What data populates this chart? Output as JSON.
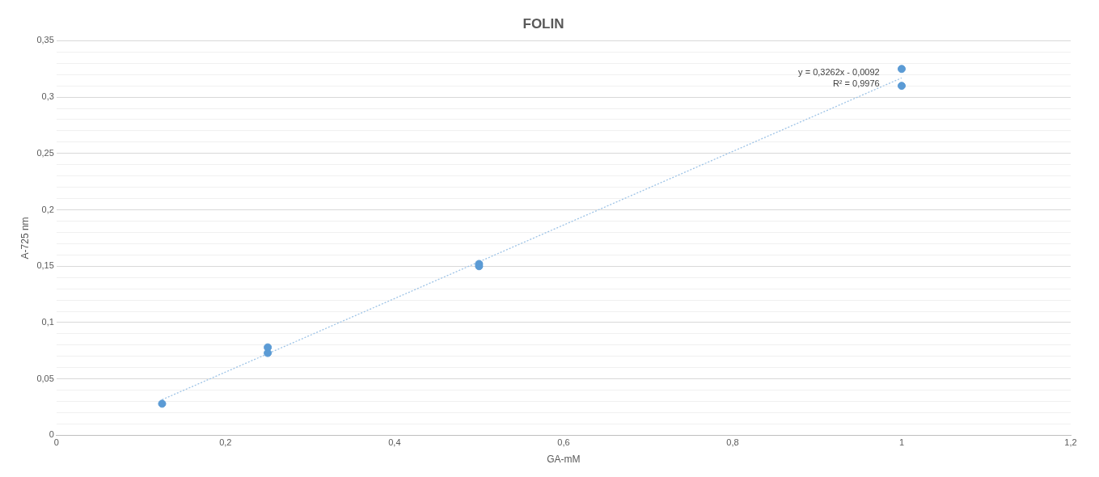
{
  "chart_data": {
    "type": "scatter",
    "title": "FOLIN",
    "xlabel": "GA-mM",
    "ylabel": "A-725 nm",
    "series": [
      {
        "type": "scatter",
        "color": "#5b9bd5",
        "x": [
          0.125,
          0.25,
          0.25,
          0.5,
          0.5,
          1,
          1
        ],
        "values": [
          0.028,
          0.078,
          0.073,
          0.152,
          0.15,
          0.325,
          0.31
        ]
      },
      {
        "type": "line",
        "color": "#9dc3e6",
        "line_style": "dotted",
        "marker": "none",
        "x": [
          0.125,
          1
        ],
        "values": [
          0.0316,
          0.317
        ]
      }
    ],
    "marker": "circle",
    "annotations": [
      "y = 0,3262x - 0,0092",
      "R² = 0,9976"
    ],
    "xlim": [
      0,
      1.2
    ],
    "xticks": [
      0,
      {
        "value": 0.2,
        "label": "0,2"
      },
      {
        "value": 0.4,
        "label": "0,4"
      },
      {
        "value": 0.6,
        "label": "0,6"
      },
      {
        "value": 0.8,
        "label": "0,8"
      },
      1,
      {
        "value": 1.2,
        "label": "1,2"
      }
    ],
    "ylim": [
      0,
      0.35
    ],
    "yticks": [
      0,
      {
        "value": 0.01,
        "label": null
      },
      {
        "value": 0.02,
        "label": null
      },
      {
        "value": 0.03,
        "label": null
      },
      {
        "value": 0.04,
        "label": null
      },
      {
        "value": 0.05,
        "label": "0,05"
      },
      {
        "value": 0.06,
        "label": null
      },
      {
        "value": 0.07,
        "label": null
      },
      {
        "value": 0.08,
        "label": null
      },
      {
        "value": 0.09,
        "label": null
      },
      {
        "value": 0.1,
        "label": "0,1"
      },
      {
        "value": 0.11,
        "label": null
      },
      {
        "value": 0.12,
        "label": null
      },
      {
        "value": 0.13,
        "label": null
      },
      {
        "value": 0.14,
        "label": null
      },
      {
        "value": 0.15,
        "label": "0,15"
      },
      {
        "value": 0.16,
        "label": null
      },
      {
        "value": 0.17,
        "label": null
      },
      {
        "value": 0.18,
        "label": null
      },
      {
        "value": 0.19,
        "label": null
      },
      {
        "value": 0.2,
        "label": "0,2"
      },
      {
        "value": 0.21,
        "label": null
      },
      {
        "value": 0.22,
        "label": null
      },
      {
        "value": 0.23,
        "label": null
      },
      {
        "value": 0.24,
        "label": null
      },
      {
        "value": 0.25,
        "label": "0,25"
      },
      {
        "value": 0.26,
        "label": null
      },
      {
        "value": 0.27,
        "label": null
      },
      {
        "value": 0.28,
        "label": null
      },
      {
        "value": 0.29,
        "label": null
      },
      {
        "value": 0.3,
        "label": "0,3"
      },
      {
        "value": 0.31,
        "label": null
      },
      {
        "value": 0.32,
        "label": null
      },
      {
        "value": 0.33,
        "label": null
      },
      {
        "value": 0.34,
        "label": null
      },
      {
        "value": 0.35,
        "label": "0,35"
      }
    ],
    "grid": "y",
    "legend": false
  }
}
